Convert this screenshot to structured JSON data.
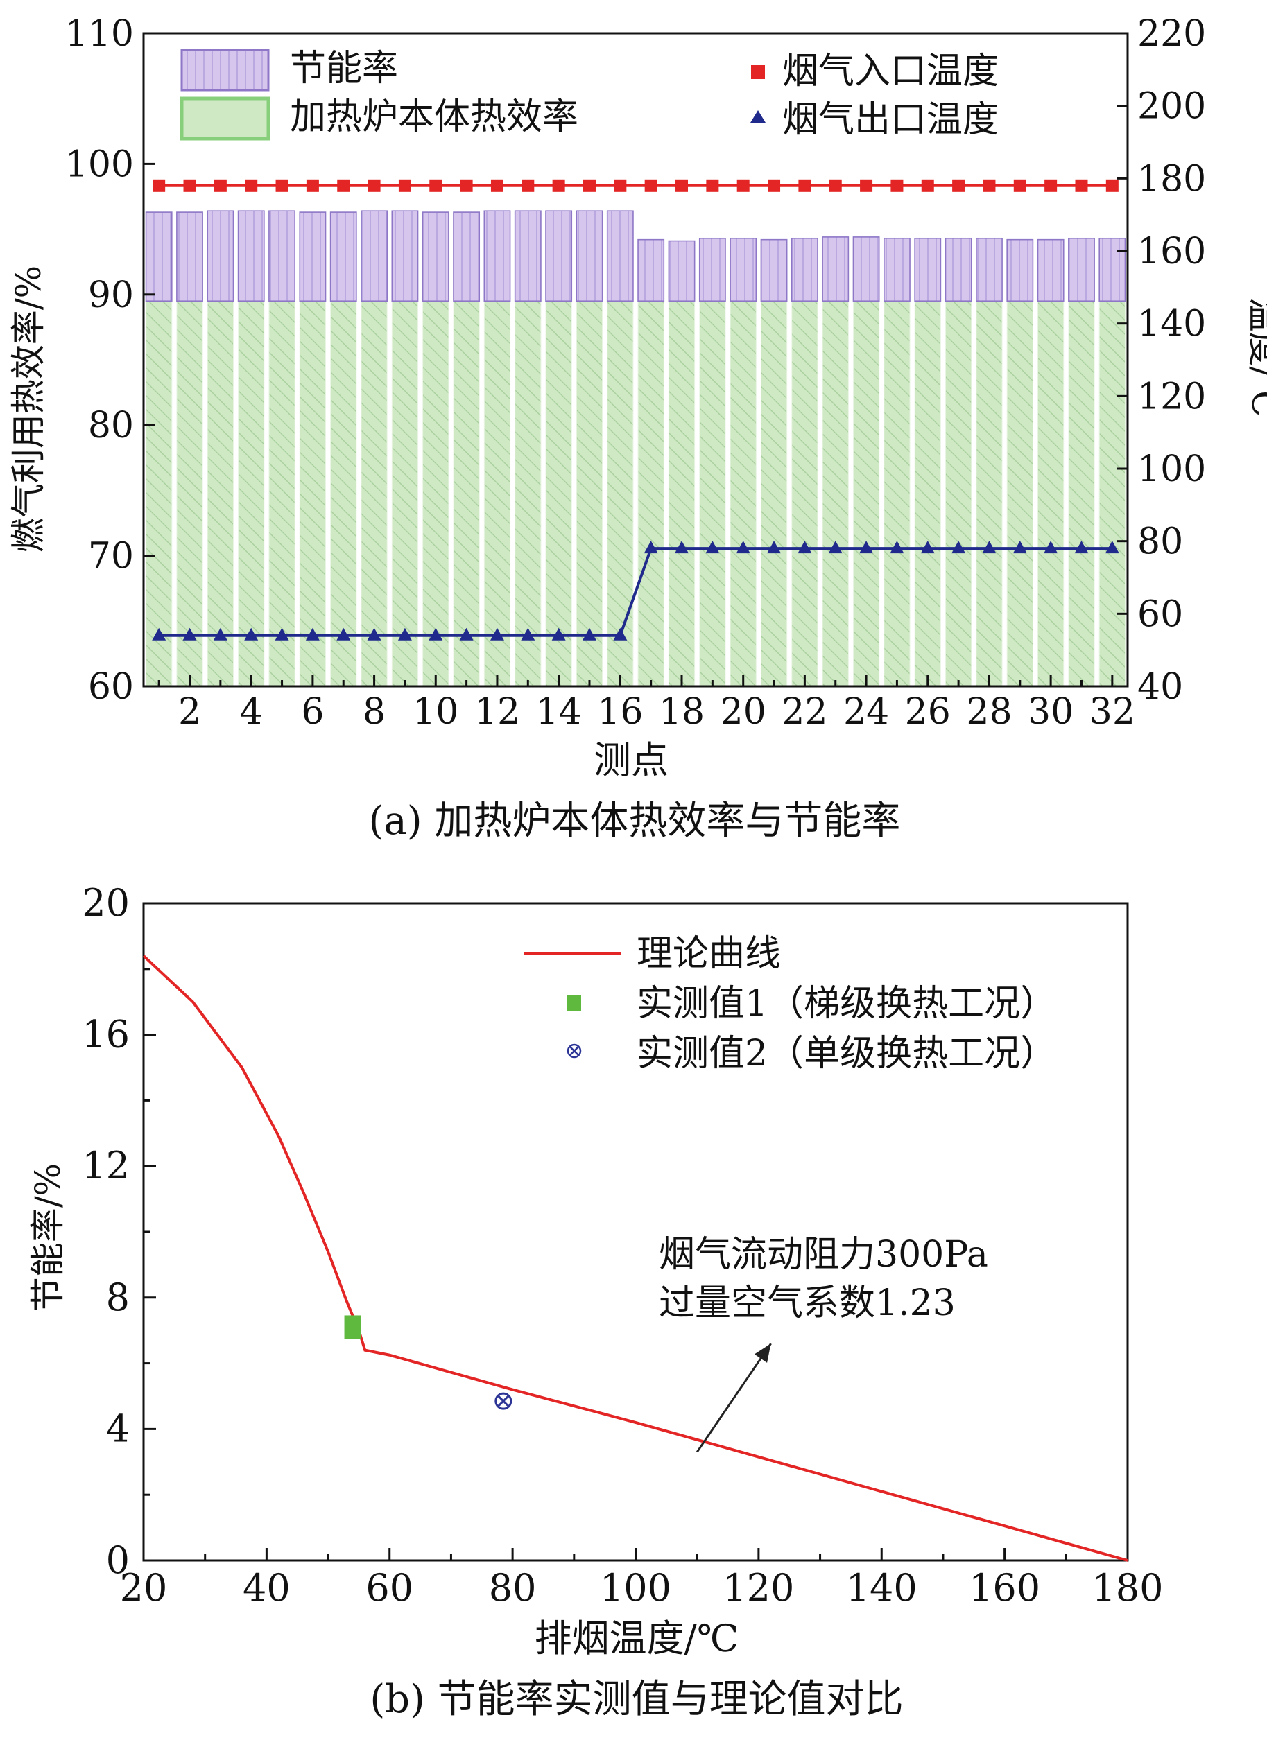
{
  "colors": {
    "saving": "#d6c6ee",
    "saving_edge": "#8d77c6",
    "efficiency": "#cfe9c4",
    "efficiency_edge": "#88cf7c",
    "inlet": "#e32525",
    "outlet": "#1f2a8c",
    "theory": "#e32525",
    "measured1": "#5fb93e",
    "measured2": "#2c3596",
    "arrow": "#222222"
  },
  "chart_data": [
    {
      "type": "bar",
      "panel": "a",
      "caption": "(a) 加热炉本体热效率与节能率",
      "xlabel": "测点",
      "ylabel": "燃气利用热效率/%",
      "y2label": "温度/℃",
      "ylim": [
        60,
        110
      ],
      "yticks": [
        60,
        70,
        80,
        90,
        100,
        110
      ],
      "y2lim": [
        40,
        220
      ],
      "y2ticks": [
        40,
        60,
        80,
        100,
        120,
        140,
        160,
        180,
        200,
        220
      ],
      "xticks": [
        2,
        4,
        6,
        8,
        10,
        12,
        14,
        16,
        18,
        20,
        22,
        24,
        26,
        28,
        30,
        32
      ],
      "legend_position": "top",
      "x": [
        1,
        2,
        3,
        4,
        5,
        6,
        7,
        8,
        9,
        10,
        11,
        12,
        13,
        14,
        15,
        16,
        17,
        18,
        19,
        20,
        21,
        22,
        23,
        24,
        25,
        26,
        27,
        28,
        29,
        30,
        31,
        32
      ],
      "series": [
        {
          "name": "加热炉本体热效率",
          "kind": "stacked-bar-base",
          "values": [
            89.5,
            89.5,
            89.5,
            89.5,
            89.5,
            89.5,
            89.5,
            89.5,
            89.5,
            89.5,
            89.5,
            89.5,
            89.5,
            89.5,
            89.5,
            89.5,
            89.5,
            89.5,
            89.5,
            89.5,
            89.5,
            89.5,
            89.5,
            89.5,
            89.5,
            89.5,
            89.5,
            89.5,
            89.5,
            89.5,
            89.5,
            89.5
          ]
        },
        {
          "name": "节能率",
          "kind": "stacked-bar-top",
          "values": [
            6.8,
            6.8,
            6.9,
            6.9,
            6.9,
            6.8,
            6.8,
            6.9,
            6.9,
            6.8,
            6.8,
            6.9,
            6.9,
            6.9,
            6.9,
            6.9,
            4.7,
            4.6,
            4.8,
            4.8,
            4.7,
            4.8,
            4.9,
            4.9,
            4.8,
            4.8,
            4.8,
            4.8,
            4.7,
            4.7,
            4.8,
            4.8
          ]
        },
        {
          "name": "烟气入口温度",
          "kind": "line-right-axis",
          "marker": "square",
          "values": [
            178,
            178,
            178,
            178,
            178,
            178,
            178,
            178,
            178,
            178,
            178,
            178,
            178,
            178,
            178,
            178,
            178,
            178,
            178,
            178,
            178,
            178,
            178,
            178,
            178,
            178,
            178,
            178,
            178,
            178,
            178,
            178
          ]
        },
        {
          "name": "烟气出口温度",
          "kind": "line-right-axis",
          "marker": "triangle",
          "values": [
            54,
            54,
            54,
            54,
            54,
            54,
            54,
            54,
            54,
            54,
            54,
            54,
            54,
            54,
            54,
            54,
            78,
            78,
            78,
            78,
            78,
            78,
            78,
            78,
            78,
            78,
            78,
            78,
            78,
            78,
            78,
            78
          ]
        }
      ]
    },
    {
      "type": "line",
      "panel": "b",
      "caption": "(b) 节能率实测值与理论值对比",
      "xlabel": "排烟温度/℃",
      "ylabel": "节能率/%",
      "xlim": [
        20,
        180
      ],
      "xticks": [
        20,
        40,
        60,
        80,
        100,
        120,
        140,
        160,
        180
      ],
      "ylim": [
        0,
        20
      ],
      "yticks": [
        0,
        4,
        8,
        12,
        16,
        20
      ],
      "legend_position": "top-right",
      "series": [
        {
          "name": "理论曲线",
          "kind": "line",
          "x": [
            20,
            28,
            36,
            42,
            46,
            50,
            53,
            55,
            56,
            60,
            80,
            100,
            120,
            140,
            160,
            180
          ],
          "y": [
            18.4,
            17.0,
            15.0,
            12.9,
            11.2,
            9.4,
            7.9,
            7.0,
            6.4,
            6.25,
            5.2,
            4.2,
            3.15,
            2.1,
            1.05,
            0.0
          ]
        },
        {
          "name": "实测值1（梯级换热工况）",
          "kind": "scatter",
          "marker": "square",
          "x": [
            54
          ],
          "y": [
            7.1
          ]
        },
        {
          "name": "实测值2（单级换热工况）",
          "kind": "scatter",
          "marker": "circle-x",
          "x": [
            78.5
          ],
          "y": [
            4.85
          ]
        }
      ],
      "annotation": {
        "lines": [
          "烟气流动阻力300Pa",
          "过量空气系数1.23"
        ],
        "arrow_from": [
          110,
          3.3
        ],
        "arrow_to": [
          122,
          6.6
        ]
      }
    }
  ]
}
